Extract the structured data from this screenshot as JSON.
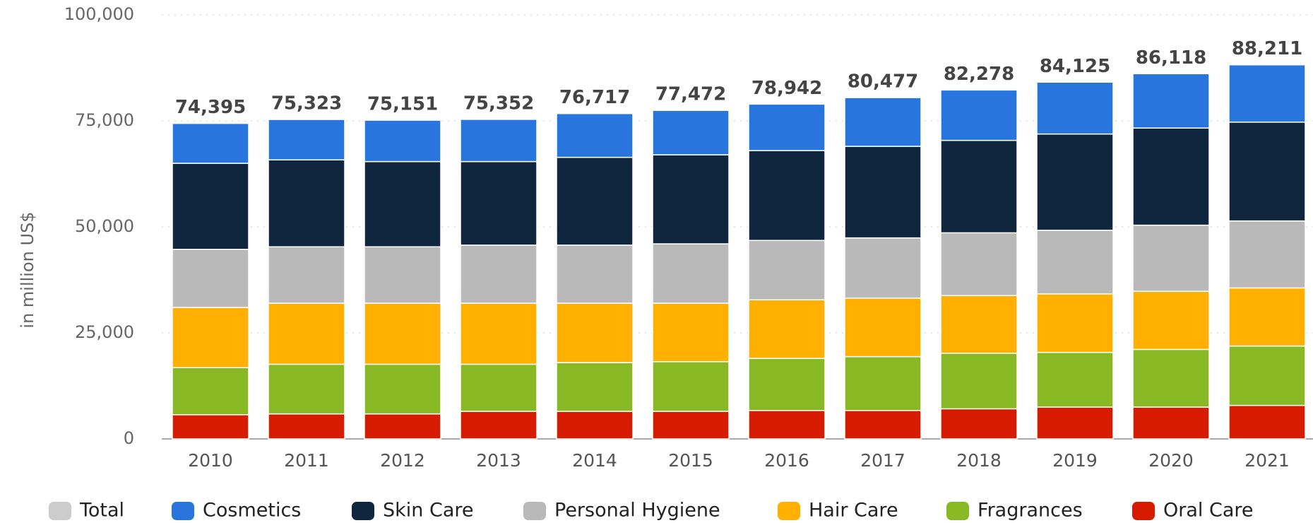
{
  "chart_data": {
    "type": "stacked_bar",
    "y_label": "in million US$",
    "categories": [
      "2010",
      "2011",
      "2012",
      "2013",
      "2014",
      "2015",
      "2016",
      "2017",
      "2018",
      "2019",
      "2020",
      "2021"
    ],
    "series": [
      {
        "name": "Total",
        "color": "#cccccc",
        "visible": false,
        "values": [
          74395,
          75323,
          75151,
          75352,
          76717,
          77472,
          78942,
          80477,
          82278,
          84125,
          86118,
          88211
        ],
        "value_labels": [
          "74,395",
          "75,323",
          "75,151",
          "75,352",
          "76,717",
          "77,472",
          "78,942",
          "80,477",
          "82,278",
          "84,125",
          "86,118",
          "88,211"
        ]
      },
      {
        "name": "Cosmetics",
        "color": "#2876dd",
        "values": [
          9395,
          9523,
          9751,
          9952,
          10317,
          10472,
          10942,
          11477,
          11878,
          12225,
          12818,
          13511
        ]
      },
      {
        "name": "Skin Care",
        "color": "#10263e",
        "values": [
          20300,
          20500,
          20100,
          19700,
          20700,
          21000,
          21200,
          21600,
          21800,
          22700,
          22900,
          23300
        ]
      },
      {
        "name": "Personal Hygiene",
        "color": "#b9b9b9",
        "values": [
          13700,
          13300,
          13300,
          13700,
          13700,
          14000,
          14000,
          14200,
          14800,
          15000,
          15600,
          15800
        ]
      },
      {
        "name": "Hair Care",
        "color": "#ffb000",
        "values": [
          14200,
          14400,
          14400,
          14400,
          14000,
          13800,
          13800,
          13800,
          13600,
          13800,
          13700,
          13700
        ]
      },
      {
        "name": "Fragrances",
        "color": "#88b925",
        "values": [
          11100,
          11700,
          11700,
          11100,
          11500,
          11700,
          12300,
          12700,
          13100,
          12900,
          13600,
          14000
        ]
      },
      {
        "name": "Oral Care",
        "color": "#d61b00",
        "values": [
          5700,
          5900,
          5900,
          6500,
          6500,
          6500,
          6700,
          6700,
          7100,
          7500,
          7500,
          7900
        ]
      }
    ],
    "ylim": [
      0,
      100000
    ],
    "yticks": [
      {
        "value": 0,
        "label": "0"
      },
      {
        "value": 25000,
        "label": "25,000"
      },
      {
        "value": 50000,
        "label": "50,000"
      },
      {
        "value": 75000,
        "label": "75,000"
      },
      {
        "value": 100000,
        "label": "100,000"
      }
    ],
    "grid": true,
    "legend": "bottom"
  }
}
